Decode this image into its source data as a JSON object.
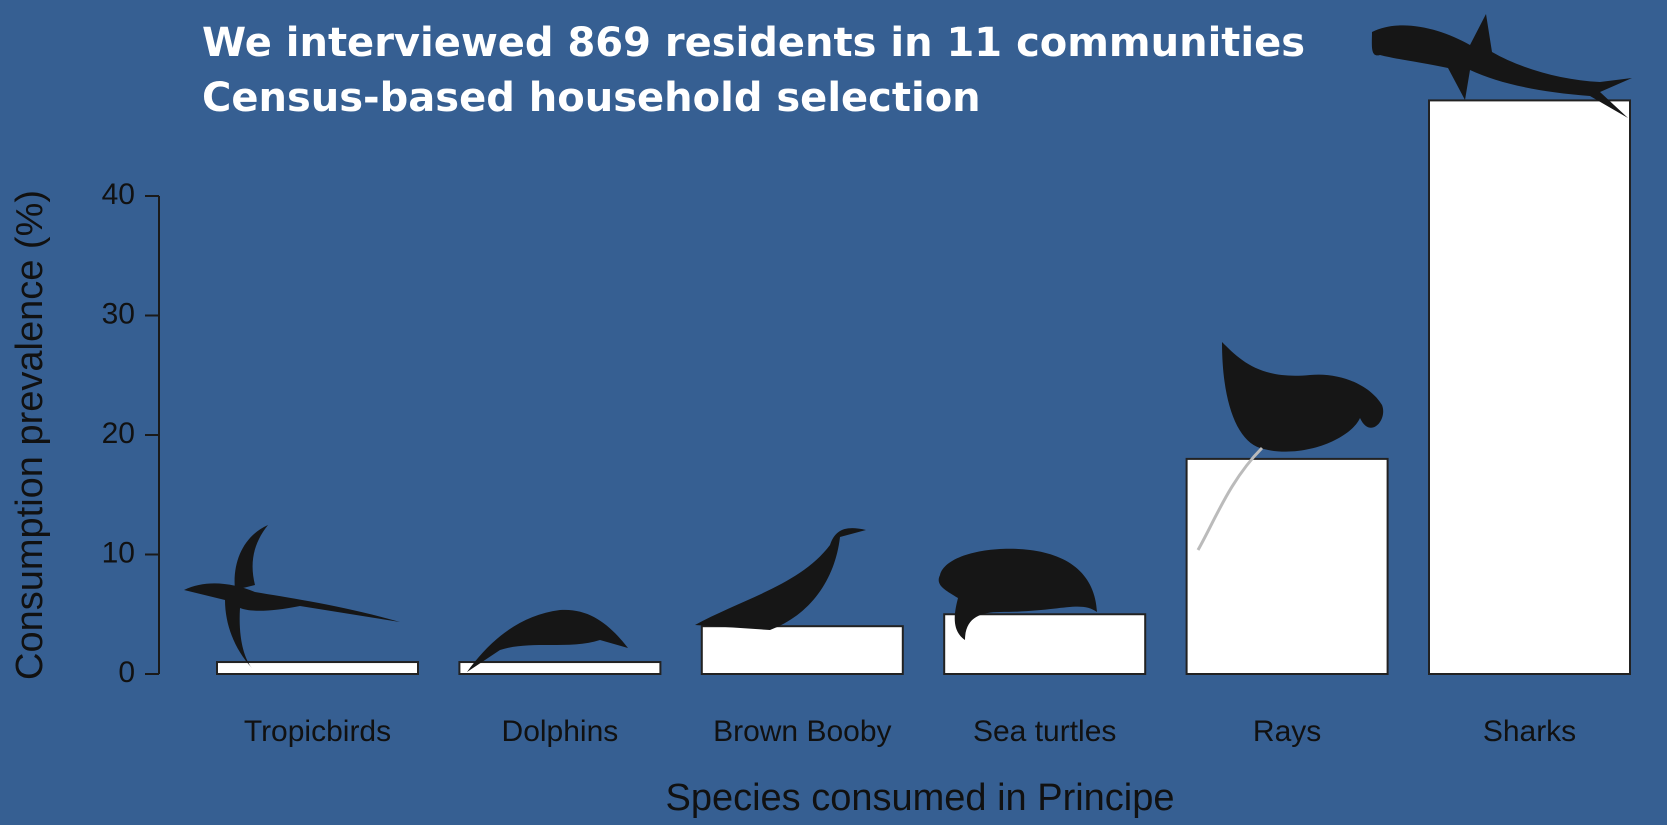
{
  "chart_data": {
    "type": "bar",
    "title": "We interviewed 869 residents in 11 communities",
    "subtitle": "Census-based household selection",
    "y_label": "Consumption prevalence (%)",
    "x_label": "Species consumed in Principe",
    "categories": [
      "Tropicbirds",
      "Dolphins",
      "Brown Booby",
      "Sea turtles",
      "Rays",
      "Sharks"
    ],
    "values": [
      1,
      1,
      4,
      5,
      18,
      48
    ],
    "color": "#ffffff",
    "ylim": [
      0,
      48
    ],
    "yticks": [
      0,
      10,
      20,
      30,
      40
    ],
    "grid": false
  }
}
